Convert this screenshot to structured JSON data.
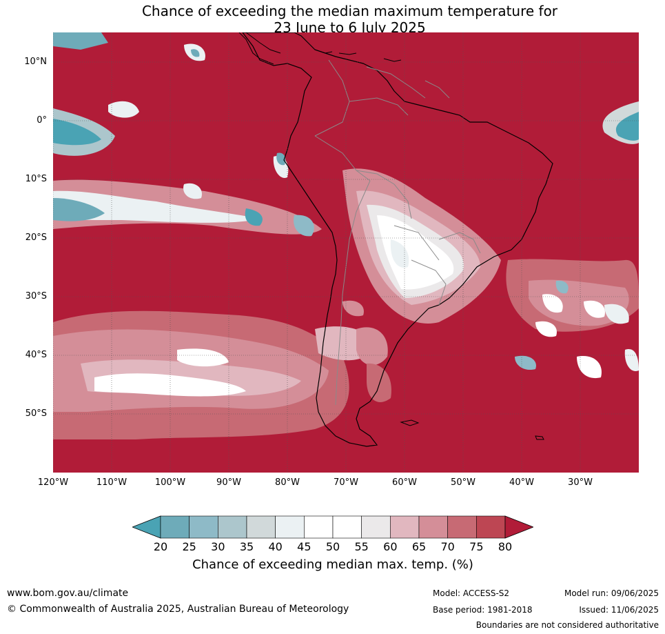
{
  "title": {
    "line1": "Chance of exceeding the median maximum temperature for",
    "line2": "23 June to 6 July 2025"
  },
  "map": {
    "region": "South America",
    "background_color": "#b11c38",
    "lat_labels": [
      "10°N",
      "0°",
      "10°S",
      "20°S",
      "30°S",
      "40°S",
      "50°S"
    ],
    "lon_labels": [
      "120°W",
      "110°W",
      "100°W",
      "90°W",
      "80°W",
      "70°W",
      "60°W",
      "50°W",
      "40°W",
      "30°W"
    ]
  },
  "colorbar": {
    "ticks": [
      "20",
      "25",
      "30",
      "35",
      "40",
      "45",
      "50",
      "55",
      "60",
      "65",
      "70",
      "75",
      "80"
    ],
    "colors": [
      "#4aa3b4",
      "#6eabb9",
      "#8ebac7",
      "#acc6cc",
      "#d1d9da",
      "#ebf1f3",
      "#ffffff",
      "#ffffff",
      "#ebe9ea",
      "#e1b7bf",
      "#d48e98",
      "#c76a74",
      "#bd4653",
      "#b11c38"
    ],
    "label": "Chance of exceeding median max. temp. (%)"
  },
  "footer": {
    "website": "www.bom.gov.au/climate",
    "copyright": "© Commonwealth of Australia 2025, Australian Bureau of Meteorology",
    "model": "Model: ACCESS-S2",
    "base_period": "Base period: 1981-2018",
    "model_run": "Model run: 09/06/2025",
    "issued": "Issued: 11/06/2025",
    "disclaimer": "Boundaries are not considered authoritative"
  }
}
